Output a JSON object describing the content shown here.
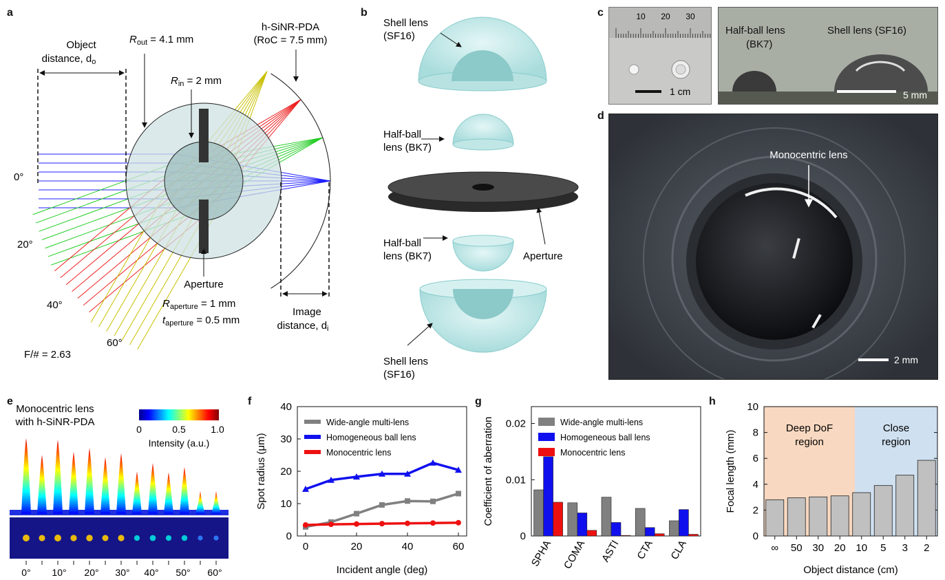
{
  "panel_labels": {
    "a": "a",
    "b": "b",
    "c": "c",
    "d": "d",
    "e": "e",
    "f": "f",
    "g": "g",
    "h": "h"
  },
  "a": {
    "object_distance": "Object",
    "object_distance2": "distance, d",
    "object_sub": "o",
    "r_out": "R",
    "r_out_sub": "out",
    "r_out_val": " = 4.1 mm",
    "detector": "h-SiNR-PDA",
    "roc": "(RoC = 7.5 mm)",
    "r_in": "R",
    "r_in_sub": "in",
    "r_in_val": " = 2 mm",
    "aperture": "Aperture",
    "r_ap": "R",
    "r_ap_sub": "aperture",
    "r_ap_val": " = 1 mm",
    "t_ap": "t",
    "t_ap_sub": "aperture",
    "t_ap_val": " = 0.5 mm",
    "image_distance": "Image",
    "image_distance2": "distance, d",
    "image_sub": "i",
    "angles": [
      "0°",
      "20°",
      "40°",
      "60°"
    ],
    "fnum": "F/# = 2.63",
    "colors": {
      "0": "#2020ff",
      "20": "#22cc22",
      "40": "#ee2020",
      "60": "#c8c000"
    }
  },
  "b": {
    "shell_top": "Shell lens",
    "shell_top2": "(SF16)",
    "half_top": "Half-ball",
    "half_top2": "lens (BK7)",
    "half_bot": "Half-ball",
    "half_bot2": "lens (BK7)",
    "aperture": "Aperture",
    "shell_bot": "Shell lens",
    "shell_bot2": "(SF16)"
  },
  "c": {
    "ruler_ticks": [
      "10",
      "20",
      "30"
    ],
    "scale1": "1 cm",
    "half_ball": "Half-ball lens",
    "half_ball2": "(BK7)",
    "shell": "Shell lens (SF16)",
    "scale2": "5 mm"
  },
  "d": {
    "label": "Monocentric lens",
    "scale": "2 mm"
  },
  "e": {
    "title1": "Monocentric lens",
    "title2": "with h-SiNR-PDA",
    "cb_ticks": [
      "0",
      "0.5",
      "1.0"
    ],
    "cb_label": "Intensity (a.u.)",
    "x_ticks": [
      "0°",
      "10°",
      "20°",
      "30°",
      "40°",
      "50°",
      "60°"
    ],
    "peaks": [
      1.0,
      0.78,
      0.98,
      0.82,
      0.87,
      0.75,
      0.8,
      0.56,
      0.67,
      0.55,
      0.62,
      0.3,
      0.3
    ]
  },
  "chart_data": [
    {
      "id": "f",
      "type": "line",
      "xlabel": "Incident angle (deg)",
      "ylabel": "Spot radius (μm)",
      "xlim": [
        0,
        60
      ],
      "ylim": [
        0,
        40
      ],
      "x_ticks": [
        "0",
        "20",
        "40",
        "60"
      ],
      "y_ticks": [
        "0",
        "10",
        "20",
        "30",
        "40"
      ],
      "x": [
        0,
        10,
        20,
        30,
        40,
        50,
        60
      ],
      "series": [
        {
          "name": "Wide-angle multi-lens",
          "color": "#808080",
          "values": [
            2.8,
            4.3,
            6.9,
            9.6,
            10.8,
            10.7,
            13.1
          ]
        },
        {
          "name": "Homogeneous ball lens",
          "color": "#1010ee",
          "values": [
            14.5,
            17.3,
            18.3,
            19.2,
            19.2,
            22.6,
            20.4
          ]
        },
        {
          "name": "Monocentric lens",
          "color": "#ee1010",
          "values": [
            3.4,
            3.6,
            3.7,
            3.8,
            3.9,
            4.0,
            4.1
          ]
        }
      ]
    },
    {
      "id": "g",
      "type": "bar",
      "ylabel": "Coefficient of aberration",
      "ylim": [
        0,
        0.023
      ],
      "y_ticks": [
        "0",
        "0.01",
        "0.02"
      ],
      "categories": [
        "SPHA",
        "COMA",
        "ASTI",
        "CTA",
        "CLA"
      ],
      "series": [
        {
          "name": "Wide-angle multi-lens",
          "color": "#808080",
          "values": [
            0.0082,
            0.0059,
            0.0069,
            0.0049,
            0.0027
          ]
        },
        {
          "name": "Homogeneous ball lens",
          "color": "#1010ee",
          "values": [
            0.0141,
            0.0041,
            0.0024,
            0.0015,
            0.0047
          ]
        },
        {
          "name": "Monocentric lens",
          "color": "#ee1010",
          "values": [
            0.006,
            0.001,
            0.0001,
            0.0004,
            0.0003
          ]
        }
      ]
    },
    {
      "id": "h",
      "type": "bar",
      "xlabel": "Object distance (cm)",
      "ylabel": "Focal length (mm)",
      "ylim": [
        0,
        10
      ],
      "y_ticks": [
        "0",
        "2",
        "4",
        "6",
        "8",
        "10"
      ],
      "categories": [
        "∞",
        "50",
        "30",
        "20",
        "10",
        "5",
        "3",
        "2"
      ],
      "values": [
        2.8,
        2.95,
        3.02,
        3.1,
        3.35,
        3.9,
        4.7,
        5.85
      ],
      "region_left": "Deep DoF",
      "region_left2": "region",
      "region_right": "Close",
      "region_right2": "region",
      "region_colors": {
        "left": "#f8d8c0",
        "right": "#cfe0f0"
      }
    }
  ]
}
